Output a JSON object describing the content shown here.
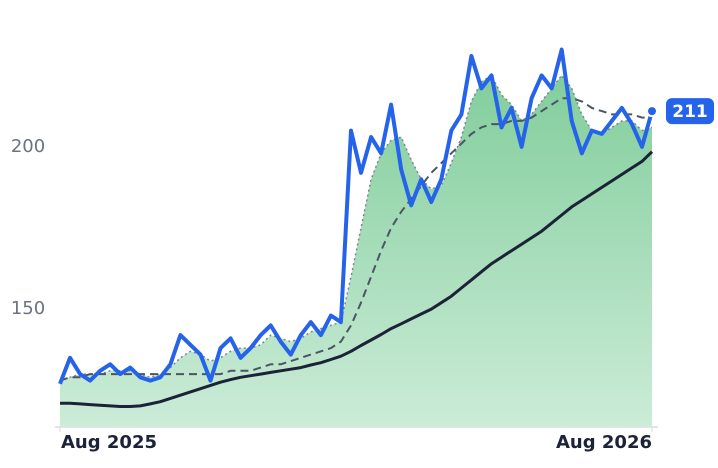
{
  "chart_data": {
    "type": "line",
    "x": [
      0,
      1,
      2,
      3,
      4,
      5,
      6,
      7,
      8,
      9,
      10,
      11,
      12,
      13,
      14,
      15,
      16,
      17,
      18,
      19,
      20,
      21,
      22,
      23,
      24,
      25,
      26,
      27,
      28,
      29,
      30,
      31,
      32,
      33,
      34,
      35,
      36,
      37,
      38,
      39,
      40,
      41,
      42,
      43,
      44,
      45,
      46,
      47,
      48,
      49,
      50,
      51,
      52,
      53,
      54,
      55,
      56,
      57,
      58,
      59
    ],
    "xlim": [
      0,
      59
    ],
    "xticks": [
      {
        "value": 0,
        "label": "Aug 2025"
      },
      {
        "value": 59,
        "label": "Aug 2026"
      }
    ],
    "ylim": [
      114,
      240
    ],
    "yticks": [
      150,
      200
    ],
    "series": [
      {
        "color": "#86cf9f",
        "fill": true,
        "style": "dotted",
        "stroke": "#7b8494",
        "values": [
          128,
          129,
          130,
          130,
          130,
          131,
          131,
          131,
          130,
          129,
          130,
          132,
          135,
          137,
          136,
          134,
          135,
          137,
          138,
          138,
          139,
          142,
          141,
          140,
          141,
          143,
          144,
          145,
          146,
          160,
          175,
          190,
          198,
          202,
          203,
          196,
          190,
          187,
          188,
          195,
          203,
          214,
          220,
          222,
          216,
          213,
          208,
          210,
          214,
          218,
          222,
          218,
          210,
          205,
          204,
          206,
          208,
          208,
          205,
          206
        ]
      },
      {
        "color": "#4b5563",
        "style": "dashed",
        "values": [
          128,
          129,
          129,
          130,
          130,
          130,
          130,
          130,
          130,
          130,
          130,
          130,
          130,
          130,
          130,
          130,
          130,
          131,
          131,
          131,
          132,
          133,
          133,
          134,
          135,
          136,
          137,
          138,
          140,
          145,
          152,
          160,
          168,
          175,
          180,
          184,
          188,
          192,
          195,
          198,
          201,
          204,
          206,
          207,
          207,
          208,
          208,
          209,
          211,
          213,
          215,
          215,
          214,
          212,
          211,
          210,
          210,
          210,
          209,
          209
        ]
      },
      {
        "color": "#1c2237",
        "style": "solid",
        "values": [
          121,
          121,
          120.8,
          120.6,
          120.4,
          120.2,
          120,
          120,
          120.2,
          120.8,
          121.5,
          122.5,
          123.5,
          124.5,
          125.5,
          126.5,
          127.5,
          128.3,
          129,
          129.5,
          130,
          130.5,
          131,
          131.5,
          132,
          132.8,
          133.5,
          134.5,
          135.5,
          137,
          138.8,
          140.5,
          142.2,
          144,
          145.5,
          147,
          148.5,
          150,
          152,
          154,
          156.5,
          159,
          161.5,
          164,
          166,
          168,
          170,
          172,
          174,
          176.5,
          179,
          181.5,
          183.5,
          185.5,
          187.5,
          189.5,
          191.5,
          193.5,
          195.5,
          198.5
        ]
      },
      {
        "color": "#2563eb",
        "style": "thick",
        "values": [
          127,
          135,
          130,
          128,
          131,
          133,
          130,
          132,
          129,
          128,
          129,
          133,
          142,
          139,
          136,
          128,
          138,
          141,
          135,
          138,
          142,
          145,
          140,
          136,
          142,
          146,
          142,
          148,
          146,
          205,
          192,
          203,
          198,
          213,
          193,
          182,
          190,
          183,
          190,
          205,
          210,
          228,
          218,
          222,
          206,
          212,
          200,
          215,
          222,
          218,
          230,
          208,
          198,
          205,
          204,
          208,
          212,
          207,
          200,
          211
        ],
        "value_labels": [
          null,
          null,
          null,
          null,
          null,
          null,
          null,
          null,
          null,
          null,
          null,
          null,
          null,
          null,
          null,
          null,
          null,
          null,
          null,
          null,
          null,
          null,
          null,
          null,
          null,
          null,
          null,
          null,
          null,
          null,
          null,
          null,
          null,
          null,
          null,
          null,
          null,
          null,
          null,
          null,
          null,
          null,
          null,
          null,
          null,
          null,
          null,
          null,
          null,
          null,
          null,
          null,
          null,
          null,
          null,
          null,
          null,
          null,
          null,
          "211"
        ]
      }
    ]
  }
}
